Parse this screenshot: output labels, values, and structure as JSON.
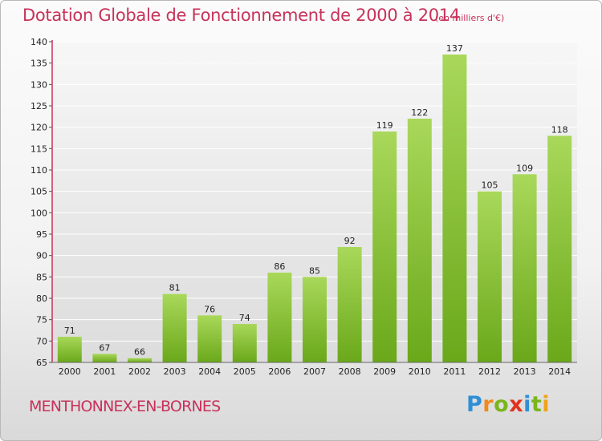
{
  "header": {
    "title": "Dotation Globale de Fonctionnement de 2000 à 2014",
    "unit": "(en milliers d'€)"
  },
  "footer": {
    "commune": "MENTHONNEX-EN-BORNES",
    "logo_letters": [
      {
        "ch": "P",
        "color": "#2f8fd6"
      },
      {
        "ch": "r",
        "color": "#f08a1c"
      },
      {
        "ch": "o",
        "color": "#7ab51d"
      },
      {
        "ch": "x",
        "color": "#e0321e"
      },
      {
        "ch": "i",
        "color": "#2f8fd6"
      },
      {
        "ch": "t",
        "color": "#7ab51d"
      },
      {
        "ch": "i",
        "color": "#f0a21c"
      }
    ]
  },
  "chart_data": {
    "type": "bar",
    "title": "Dotation Globale de Fonctionnement de 2000 à 2014",
    "subtitle": "(en milliers d'€)",
    "categories": [
      "2000",
      "2001",
      "2002",
      "2003",
      "2004",
      "2005",
      "2006",
      "2007",
      "2008",
      "2009",
      "2010",
      "2011",
      "2012",
      "2013",
      "2014"
    ],
    "values": [
      71,
      67,
      66,
      81,
      76,
      74,
      86,
      85,
      92,
      119,
      122,
      137,
      105,
      109,
      118
    ],
    "ylim": [
      65,
      140
    ],
    "yticks": [
      65,
      70,
      75,
      80,
      85,
      90,
      95,
      100,
      105,
      110,
      115,
      120,
      125,
      130,
      135,
      140
    ],
    "grid": true,
    "legend": "none",
    "colors": {
      "bar_light": "#a9d85a",
      "bar_dark": "#6aa81a",
      "axis": "#c8325a",
      "grid": "#ffffff"
    }
  }
}
